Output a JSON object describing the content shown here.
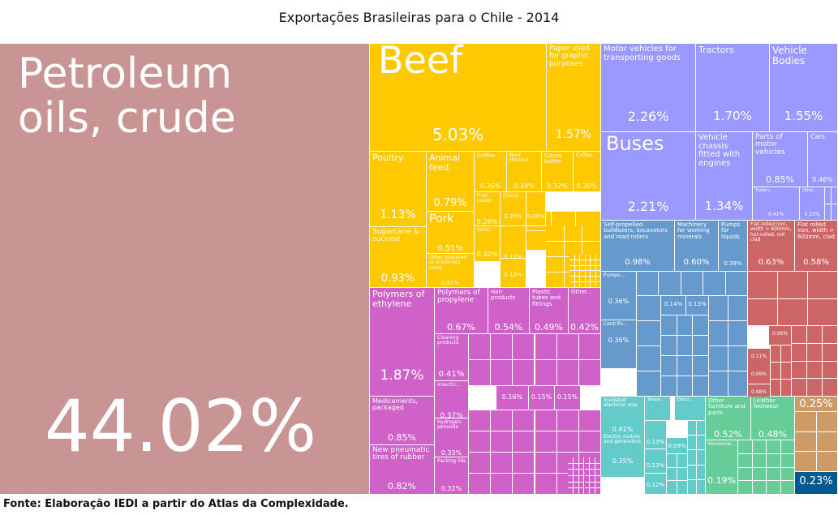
{
  "title": "Exportações Brasileiras para o Chile - 2014",
  "source": "Fonte: Elaboração IEDI a partir do Atlas da Complexidade.",
  "colors": {
    "petroleum": "#c99494",
    "food": "#ffc900",
    "chemicals": "#d061c9",
    "vehicles": "#9999ff",
    "machinery": "#6699cc",
    "metals": "#cc6565",
    "electronics": "#64cbcb",
    "misc": "#66cc98",
    "textiles": "#ce9a66",
    "other_blue": "#005a92"
  },
  "chart_data": {
    "type": "treemap",
    "title": "Exportações Brasileiras para o Chile - 2014",
    "unit": "%",
    "items": [
      {
        "label": "Petroleum oils, crude",
        "value": 44.02,
        "display": "44.02%",
        "group": "petroleum"
      },
      {
        "label": "Beef",
        "value": 5.03,
        "display": "5.03%",
        "group": "food"
      },
      {
        "label": "Paper used for graphic purposes",
        "value": 1.57,
        "display": "1.57%",
        "group": "food"
      },
      {
        "label": "Poultry",
        "value": 1.13,
        "display": "1.13%",
        "group": "food"
      },
      {
        "label": "Animal feed",
        "value": 0.79,
        "display": "0.79%",
        "group": "food"
      },
      {
        "label": "Pork",
        "value": 0.51,
        "display": "0.51%",
        "group": "food"
      },
      {
        "label": "Sugarcane & sucrose",
        "value": 0.93,
        "display": "0.93%",
        "group": "food"
      },
      {
        "label": "Coffee",
        "value": 0.36,
        "display": "0.36%",
        "group": "food"
      },
      {
        "label": "Beef (frozen)",
        "value": 0.34,
        "display": "0.34%",
        "group": "food"
      },
      {
        "label": "Cocoa butter",
        "value": 0.32,
        "display": "0.32%",
        "group": "food"
      },
      {
        "label": "Coffee...",
        "value": 0.3,
        "display": "0.30%",
        "group": "food"
      },
      {
        "label": "Fruit juices",
        "value": 0.26,
        "display": "0.26%",
        "group": "food"
      },
      {
        "label": "Choco...",
        "value": 0.2,
        "display": "0.20%",
        "group": "food"
      },
      {
        "label": "",
        "value": 0.06,
        "display": "0.06%",
        "group": "food"
      },
      {
        "label": "Solid...",
        "value": 0.32,
        "display": "0.32%",
        "group": "food"
      },
      {
        "label": "",
        "value": 0.13,
        "display": "0.13%",
        "group": "food"
      },
      {
        "label": "",
        "value": 0.12,
        "display": "0.12%",
        "group": "food"
      },
      {
        "label": "Other prepared or preserved meat",
        "value": 0.41,
        "display": "0.41%",
        "group": "food"
      },
      {
        "label": "Polymers of ethylene",
        "value": 1.87,
        "display": "1.87%",
        "group": "chemicals"
      },
      {
        "label": "Polymers of propylene",
        "value": 0.67,
        "display": "0.67%",
        "group": "chemicals"
      },
      {
        "label": "Hair products",
        "value": 0.54,
        "display": "0.54%",
        "group": "chemicals"
      },
      {
        "label": "Plastic tubes and fittings",
        "value": 0.49,
        "display": "0.49%",
        "group": "chemicals"
      },
      {
        "label": "Other...",
        "value": 0.42,
        "display": "0.42%",
        "group": "chemicals"
      },
      {
        "label": "Medicaments, packaged",
        "value": 0.85,
        "display": "0.85%",
        "group": "chemicals"
      },
      {
        "label": "New pneumatic tires of rubber",
        "value": 0.82,
        "display": "0.82%",
        "group": "chemicals"
      },
      {
        "label": "Cleaning products",
        "value": 0.41,
        "display": "0.41%",
        "group": "chemicals"
      },
      {
        "label": "Insectic...",
        "value": 0.37,
        "display": "0.37%",
        "group": "chemicals"
      },
      {
        "label": "Hydrogen peroxide",
        "value": 0.33,
        "display": "0.33%",
        "group": "chemicals"
      },
      {
        "label": "Packing lids",
        "value": 0.32,
        "display": "0.32%",
        "group": "chemicals"
      },
      {
        "label": "",
        "value": 0.16,
        "display": "0.16%",
        "group": "chemicals"
      },
      {
        "label": "",
        "value": 0.15,
        "display": "0.15%",
        "group": "chemicals"
      },
      {
        "label": "",
        "value": 0.15,
        "display": "0.15%",
        "group": "chemicals"
      },
      {
        "label": "Motor vehicles for transporting goods",
        "value": 2.26,
        "display": "2.26%",
        "group": "vehicles"
      },
      {
        "label": "Tractors",
        "value": 1.7,
        "display": "1.70%",
        "group": "vehicles"
      },
      {
        "label": "Vehicle Bodies",
        "value": 1.55,
        "display": "1.55%",
        "group": "vehicles"
      },
      {
        "label": "Buses",
        "value": 2.21,
        "display": "2.21%",
        "group": "vehicles"
      },
      {
        "label": "Vehicle chassis fitted with engines",
        "value": 1.34,
        "display": "1.34%",
        "group": "vehicles"
      },
      {
        "label": "Parts of motor vehicles",
        "value": 0.85,
        "display": "0.85%",
        "group": "vehicles"
      },
      {
        "label": "Cars",
        "value": 0.46,
        "display": "0.46%",
        "group": "vehicles"
      },
      {
        "label": "Trailers...",
        "value": 0.41,
        "display": "0.41%",
        "group": "vehicles"
      },
      {
        "label": "Other...",
        "value": 0.13,
        "display": "0.13%",
        "group": "vehicles"
      },
      {
        "label": "Self-propelled bulldozers, excavators and road rollers",
        "value": 0.98,
        "display": "0.98%",
        "group": "machinery"
      },
      {
        "label": "Machinery for working minerals",
        "value": 0.6,
        "display": "0.60%",
        "group": "machinery"
      },
      {
        "label": "Pumps for liquids",
        "value": 0.39,
        "display": "0.39%",
        "group": "machinery"
      },
      {
        "label": "Pumps,...",
        "value": 0.36,
        "display": "0.36%",
        "group": "machinery"
      },
      {
        "label": "Centrifu...",
        "value": 0.36,
        "display": "0.36%",
        "group": "machinery"
      },
      {
        "label": "",
        "value": 0.14,
        "display": "0.14%",
        "group": "machinery"
      },
      {
        "label": "",
        "value": 0.13,
        "display": "0.13%",
        "group": "machinery"
      },
      {
        "label": "Flat-rolled iron, width > 600mm, hot-rolled, not clad",
        "value": 0.63,
        "display": "0.63%",
        "group": "metals"
      },
      {
        "label": "Flat rolled iron, width > 600mm, clad",
        "value": 0.58,
        "display": "0.58%",
        "group": "metals"
      },
      {
        "label": "",
        "value": 0.06,
        "display": "0.06%",
        "group": "metals"
      },
      {
        "label": "",
        "value": 0.11,
        "display": "0.11%",
        "group": "metals"
      },
      {
        "label": "",
        "value": 0.09,
        "display": "0.09%",
        "group": "metals"
      },
      {
        "label": "",
        "value": 0.08,
        "display": "0.08%",
        "group": "metals"
      },
      {
        "label": "Insulated electrical wire",
        "value": 0.41,
        "display": "0.41%",
        "group": "electronics"
      },
      {
        "label": "Teleph...",
        "value": 0.31,
        "display": "0.31%",
        "group": "electronics"
      },
      {
        "label": "Electr...",
        "value": 0.27,
        "display": "0.27%",
        "group": "electronics"
      },
      {
        "label": "Electric motors and generators",
        "value": 0.35,
        "display": "0.35%",
        "group": "electronics"
      },
      {
        "label": "",
        "value": 0.13,
        "display": "0.13%",
        "group": "electronics"
      },
      {
        "label": "",
        "value": 0.09,
        "display": "0.09%",
        "group": "electronics"
      },
      {
        "label": "",
        "value": 0.13,
        "display": "0.13%",
        "group": "electronics"
      },
      {
        "label": "",
        "value": 0.12,
        "display": "0.12%",
        "group": "electronics"
      },
      {
        "label": "Other furniture and parts",
        "value": 0.52,
        "display": "0.52%",
        "group": "misc"
      },
      {
        "label": "Leather footwear",
        "value": 0.48,
        "display": "0.48%",
        "group": "misc"
      },
      {
        "label": "Nonwove...",
        "value": 0.27,
        "display": "0.27%",
        "group": "misc"
      },
      {
        "label": "",
        "value": 0.19,
        "display": "0.19%",
        "group": "misc"
      },
      {
        "label": "",
        "value": 0.25,
        "display": "0.25%",
        "group": "textiles"
      },
      {
        "label": "",
        "value": 0.23,
        "display": "0.23%",
        "group": "other_blue"
      }
    ]
  }
}
